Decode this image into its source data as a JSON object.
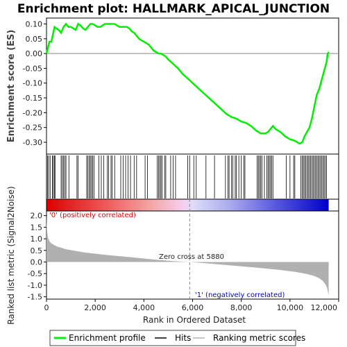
{
  "chart_data": {
    "type": "line",
    "title": "Enrichment plot: HALLMARK_APICAL_JUNCTION",
    "top_panel": {
      "ylabel": "Enrichment score (ES)",
      "ylim": [
        -0.34,
        0.12
      ],
      "yticks": [
        0.1,
        0.05,
        0.0,
        -0.05,
        -0.1,
        -0.15,
        -0.2,
        -0.25,
        -0.3
      ],
      "ytick_labels": [
        "0.10",
        "0.05",
        "0.00",
        "-0.05",
        "-0.10",
        "-0.15",
        "-0.20",
        "-0.25",
        "-0.30"
      ],
      "series": [
        {
          "name": "Enrichment profile",
          "color": "#00ee00",
          "x": [
            0,
            60,
            120,
            200,
            280,
            330,
            400,
            500,
            600,
            700,
            800,
            900,
            1000,
            1100,
            1200,
            1300,
            1400,
            1500,
            1600,
            1700,
            1800,
            1900,
            2000,
            2100,
            2200,
            2300,
            2400,
            2500,
            2600,
            2700,
            2800,
            2900,
            3000,
            3100,
            3200,
            3300,
            3400,
            3500,
            3600,
            3700,
            3800,
            3900,
            4000,
            4100,
            4200,
            4300,
            4400,
            4500,
            4600,
            4700,
            4800,
            4900,
            5000,
            5200,
            5400,
            5600,
            5880,
            6000,
            6200,
            6400,
            6600,
            6800,
            7000,
            7200,
            7400,
            7600,
            7800,
            8000,
            8200,
            8400,
            8600,
            8800,
            9000,
            9100,
            9200,
            9300,
            9400,
            9600,
            9800,
            10000,
            10200,
            10400,
            10500,
            10600,
            10700,
            10800,
            10900,
            11000,
            11100,
            11200,
            11300,
            11400,
            11500,
            11550,
            11600
          ],
          "y": [
            0.0,
            0.02,
            0.04,
            0.04,
            0.07,
            0.09,
            0.085,
            0.08,
            0.07,
            0.09,
            0.1,
            0.09,
            0.09,
            0.085,
            0.08,
            0.1,
            0.095,
            0.085,
            0.08,
            0.09,
            0.1,
            0.1,
            0.095,
            0.09,
            0.09,
            0.095,
            0.1,
            0.1,
            0.1,
            0.1,
            0.1,
            0.095,
            0.09,
            0.09,
            0.09,
            0.09,
            0.085,
            0.075,
            0.07,
            0.06,
            0.05,
            0.045,
            0.04,
            0.035,
            0.03,
            0.02,
            0.01,
            0.005,
            0.0,
            0.0,
            -0.005,
            -0.01,
            -0.02,
            -0.035,
            -0.05,
            -0.07,
            -0.09,
            -0.1,
            -0.115,
            -0.13,
            -0.145,
            -0.16,
            -0.175,
            -0.19,
            -0.205,
            -0.215,
            -0.22,
            -0.23,
            -0.235,
            -0.245,
            -0.26,
            -0.27,
            -0.27,
            -0.265,
            -0.255,
            -0.245,
            -0.255,
            -0.265,
            -0.28,
            -0.29,
            -0.295,
            -0.305,
            -0.3,
            -0.28,
            -0.265,
            -0.25,
            -0.22,
            -0.18,
            -0.14,
            -0.12,
            -0.09,
            -0.06,
            -0.03,
            0.0,
            0.005
          ]
        }
      ]
    },
    "bottom_panel": {
      "ylabel": "Ranked list metric (Signal2Noise)",
      "xlabel": "Rank in Ordered Dataset",
      "ylim": [
        -1.6,
        2.2
      ],
      "yticks": [
        2.0,
        1.5,
        1.0,
        0.5,
        0.0,
        -0.5,
        -1.0,
        -1.5
      ],
      "ytick_labels": [
        "2.0",
        "1.5",
        "1.0",
        "0.5",
        "0.0",
        "-0.5",
        "-1.0",
        "-1.5"
      ],
      "xlim": [
        0,
        12000
      ],
      "xticks": [
        0,
        2000,
        4000,
        6000,
        8000,
        10000,
        12000
      ],
      "xtick_labels": [
        "0",
        "2,000",
        "4,000",
        "6,000",
        "8,000",
        "10,000",
        "12,000"
      ],
      "metric_x": [
        0,
        20,
        60,
        120,
        200,
        400,
        800,
        1500,
        2500,
        3500,
        4500,
        5200,
        5880,
        6500,
        7500,
        8500,
        9500,
        10200,
        10700,
        11000,
        11200,
        11350,
        11450,
        11520,
        11560,
        11590
      ],
      "metric_y": [
        2.0,
        1.4,
        1.05,
        0.9,
        0.8,
        0.68,
        0.55,
        0.42,
        0.3,
        0.2,
        0.1,
        0.04,
        0.0,
        -0.05,
        -0.14,
        -0.23,
        -0.33,
        -0.42,
        -0.52,
        -0.6,
        -0.7,
        -0.82,
        -0.95,
        -1.1,
        -1.3,
        -1.45
      ],
      "zero_cross": 5880,
      "zero_cross_label": "Zero cross at 5880",
      "pos_label": "'0' (positively correlated)",
      "neg_label": "'1' (negatively correlated)",
      "pos_color": "#dd0000",
      "neg_color": "#0000cc",
      "fill_color": "#b0b0b0"
    },
    "hits": [
      40,
      90,
      150,
      240,
      280,
      330,
      350,
      600,
      650,
      700,
      750,
      800,
      920,
      1250,
      1300,
      1650,
      1700,
      1750,
      1800,
      1850,
      1900,
      1950,
      2150,
      2250,
      2350,
      2500,
      2550,
      2650,
      2700,
      2800,
      3050,
      3150,
      3250,
      3350,
      3450,
      3600,
      3700,
      4050,
      4150,
      4550,
      4600,
      4650,
      4700,
      4750,
      4850,
      4900,
      5100,
      5200,
      5300,
      5800,
      5880,
      6050,
      6150,
      6550,
      6900,
      7350,
      7450,
      7500,
      7600,
      7650,
      7750,
      7800,
      7900,
      8000,
      8100,
      8150,
      8650,
      8700,
      8750,
      8800,
      8850,
      8950,
      9050,
      9100,
      9150,
      9200,
      9250,
      9300,
      9850,
      10000,
      10150,
      10200,
      10450,
      10500,
      10550,
      10600,
      10650,
      10700,
      10750,
      10800,
      10850,
      10900,
      10950,
      11000,
      11050,
      11100,
      11150,
      11200,
      11250,
      11300,
      11350,
      11400,
      11450,
      11500
    ],
    "legend": [
      {
        "label": "Enrichment profile",
        "color": "#00ee00"
      },
      {
        "label": "Hits",
        "color": "#000000"
      },
      {
        "label": "Ranking metric scores",
        "color": "#b0b0b0"
      }
    ]
  }
}
